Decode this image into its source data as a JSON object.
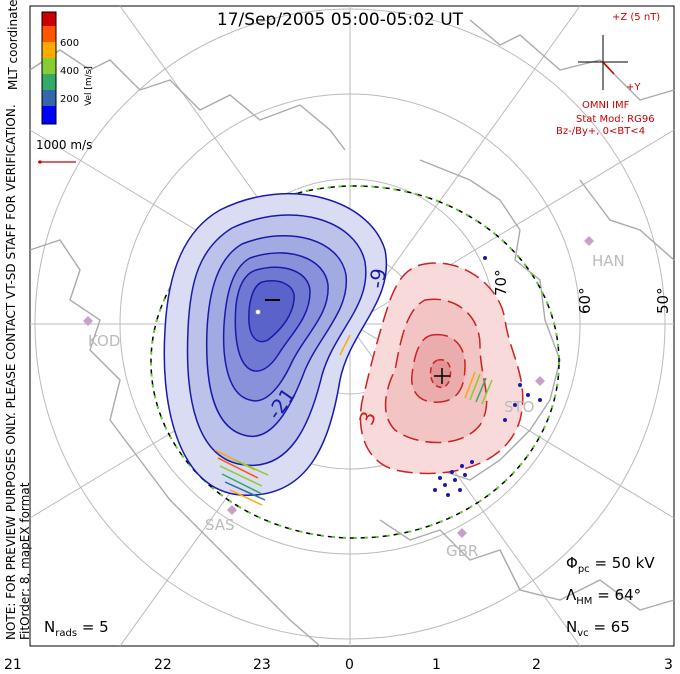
{
  "title": "17/Sep/2005 05:00-05:02 UT",
  "side_note": {
    "line1": "NOTE: FOR PREVIEW PURPOSES ONLY. PLEASE CONTACT VT-SD STAFF FOR VERIFICATION.",
    "line2": "FitOrder: 8, mapEX format"
  },
  "coordinates_label": "MLT coordinates",
  "color_scale": {
    "axis_label": "Vel [m/s]",
    "ticks": [
      "600",
      "400",
      "200"
    ],
    "colors": [
      "#cc0000",
      "#ff5500",
      "#ffaa00",
      "#88cc33",
      "#33aa66",
      "#3366aa",
      "#0000ff"
    ]
  },
  "vector_scale": {
    "label": "1000 m/s"
  },
  "imf": {
    "z_label": "+Z (5 nT)",
    "y_label": "+Y",
    "source": "OMNI IMF",
    "model_line1": "Stat Mod: RG96",
    "model_line2": "Bz-/By+, 0<BT<4"
  },
  "latitude_labels": [
    "70°",
    "60°",
    "50°"
  ],
  "contour_labels": [
    "-9",
    "-21",
    "3"
  ],
  "radar_labels": [
    "KOD",
    "HAN",
    "SAS",
    "GBR",
    "STO"
  ],
  "stats": {
    "phi_symbol": "Φ",
    "phi_sub": "pc",
    "phi_value": "= 50 kV",
    "lambda_symbol": "Λ",
    "lambda_sub": "HM",
    "lambda_value": "= 64°",
    "nvc_symbol": "N",
    "nvc_sub": "vc",
    "nvc_value": "= 65",
    "nrads_symbol": "N",
    "nrads_sub": "rads",
    "nrads_value": "= 5"
  },
  "mlt_ticks": [
    "21",
    "22",
    "23",
    "0",
    "1",
    "2",
    "3"
  ],
  "colors": {
    "negative_cell": "#1a1aaa",
    "positive_cell": "#cc2222",
    "boundary": "#66cc33",
    "coastline": "#aaaaaa",
    "grid": "#bbbbbb",
    "annotation": "#cc0000"
  }
}
